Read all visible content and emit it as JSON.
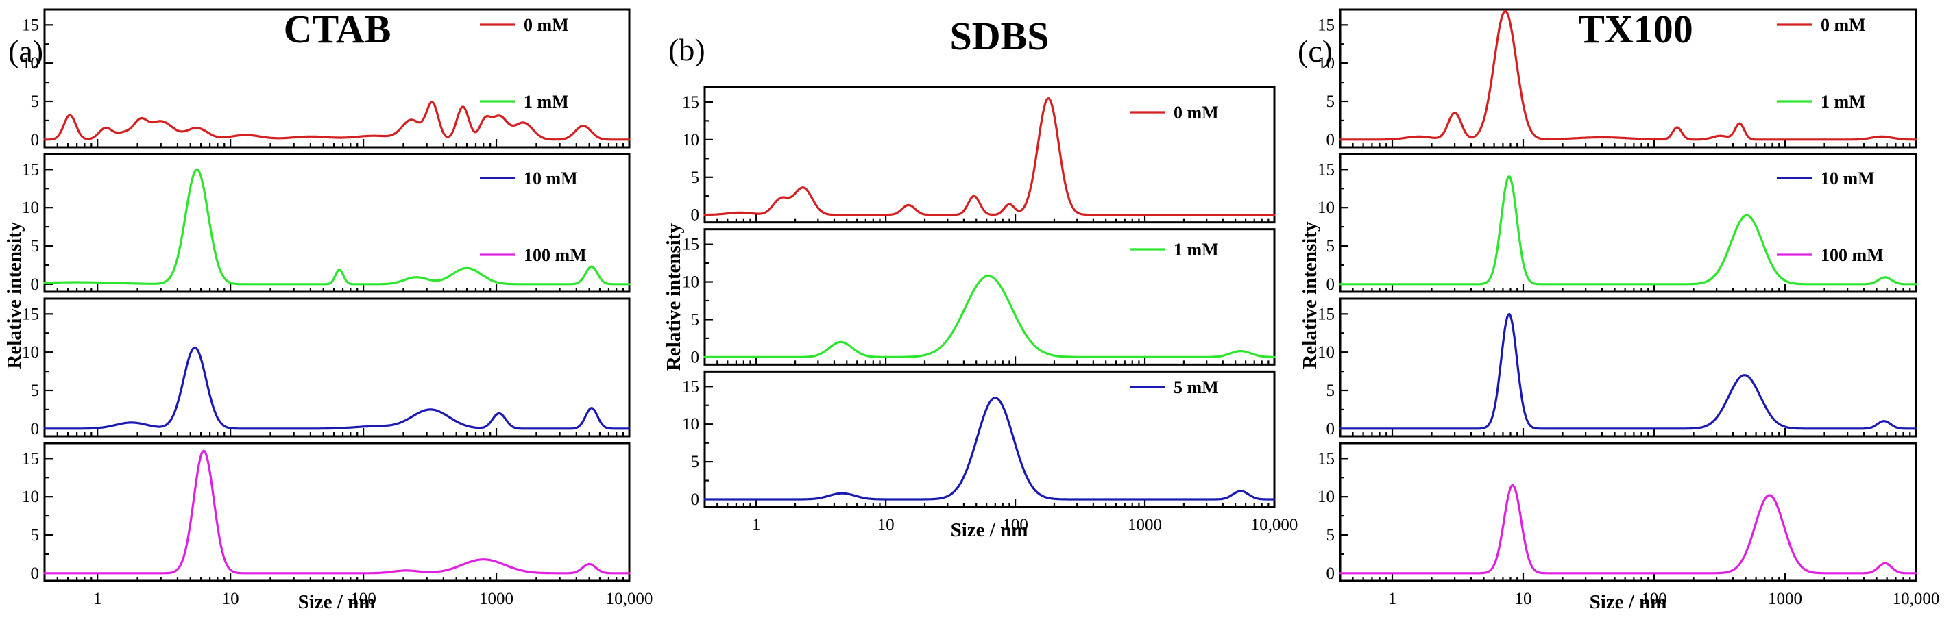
{
  "chart_data": [
    {
      "type": "line",
      "panel_label": "(a)",
      "title": "CTAB",
      "xlabel": "Size / nm",
      "ylabel": "Relative intensity",
      "x_scale": "log",
      "xlim": [
        0.4,
        10000
      ],
      "x_ticks": [
        {
          "value": 1,
          "label": "1"
        },
        {
          "value": 10,
          "label": "10"
        },
        {
          "value": 100,
          "label": "100"
        },
        {
          "value": 1000,
          "label": "1000"
        },
        {
          "value": 10000,
          "label": "10,000"
        }
      ],
      "ylim": [
        -1,
        17
      ],
      "y_ticks": [
        {
          "value": 0,
          "label": "0"
        },
        {
          "value": 5,
          "label": "5"
        },
        {
          "value": 10,
          "label": "10"
        },
        {
          "value": 15,
          "label": "15"
        }
      ],
      "series": [
        {
          "name": "0 mM",
          "color": "#d42020",
          "peaks": [
            [
              0.62,
              3.2,
              0.045
            ],
            [
              1.15,
              1.5,
              0.05
            ],
            [
              1.6,
              0.9,
              0.06
            ],
            [
              2.1,
              2.1,
              0.05
            ],
            [
              3.0,
              2.4,
              0.09
            ],
            [
              5.6,
              1.5,
              0.08
            ],
            [
              13,
              0.6,
              0.12
            ],
            [
              40,
              0.4,
              0.15
            ],
            [
              120,
              0.5,
              0.15
            ],
            [
              230,
              2.5,
              0.07
            ],
            [
              330,
              4.7,
              0.045
            ],
            [
              560,
              4.3,
              0.045
            ],
            [
              820,
              2.3,
              0.04
            ],
            [
              1050,
              3.0,
              0.06
            ],
            [
              1600,
              2.2,
              0.07
            ],
            [
              4500,
              1.8,
              0.06
            ]
          ]
        },
        {
          "name": "1 mM",
          "color": "#2ee52e",
          "peaks": [
            [
              0.7,
              0.25,
              0.3
            ],
            [
              5.6,
              15.0,
              0.085
            ],
            [
              66,
              1.9,
              0.03
            ],
            [
              250,
              0.9,
              0.09
            ],
            [
              600,
              2.1,
              0.11
            ],
            [
              5200,
              2.3,
              0.045
            ]
          ]
        },
        {
          "name": "10 mM",
          "color": "#1a1ab2",
          "peaks": [
            [
              1.8,
              0.8,
              0.12
            ],
            [
              5.4,
              10.6,
              0.085
            ],
            [
              120,
              0.3,
              0.15
            ],
            [
              320,
              2.5,
              0.14
            ],
            [
              1050,
              2.0,
              0.05
            ],
            [
              5200,
              2.7,
              0.045
            ]
          ]
        },
        {
          "name": "100 mM",
          "color": "#e020e0",
          "peaks": [
            [
              6.3,
              16.0,
              0.075
            ],
            [
              210,
              0.35,
              0.1
            ],
            [
              800,
              1.8,
              0.16
            ],
            [
              5000,
              1.2,
              0.05
            ]
          ]
        }
      ]
    },
    {
      "type": "line",
      "panel_label": "(b)",
      "title": "SDBS",
      "xlabel": "Size / nm",
      "ylabel": "Relative intensity",
      "x_scale": "log",
      "xlim": [
        0.4,
        10000
      ],
      "x_ticks": [
        {
          "value": 1,
          "label": "1"
        },
        {
          "value": 10,
          "label": "10"
        },
        {
          "value": 100,
          "label": "100"
        },
        {
          "value": 1000,
          "label": "1000"
        },
        {
          "value": 10000,
          "label": "10,000"
        }
      ],
      "ylim": [
        -1,
        17
      ],
      "y_ticks": [
        {
          "value": 0,
          "label": "0"
        },
        {
          "value": 5,
          "label": "5"
        },
        {
          "value": 10,
          "label": "10"
        },
        {
          "value": 15,
          "label": "15"
        }
      ],
      "series": [
        {
          "name": "0 mM",
          "color": "#d42020",
          "peaks": [
            [
              0.75,
              0.3,
              0.1
            ],
            [
              1.55,
              2.1,
              0.06
            ],
            [
              2.3,
              3.6,
              0.07
            ],
            [
              15,
              1.3,
              0.05
            ],
            [
              48,
              2.5,
              0.045
            ],
            [
              90,
              1.4,
              0.04
            ],
            [
              180,
              15.5,
              0.08
            ]
          ]
        },
        {
          "name": "1 mM",
          "color": "#2ee52e",
          "peaks": [
            [
              4.5,
              2.0,
              0.09
            ],
            [
              62,
              10.8,
              0.18
            ],
            [
              5500,
              0.8,
              0.08
            ]
          ]
        },
        {
          "name": "5 mM",
          "color": "#1a1ab2",
          "peaks": [
            [
              4.6,
              0.8,
              0.1
            ],
            [
              70,
              13.5,
              0.14
            ],
            [
              5500,
              1.1,
              0.06
            ]
          ]
        }
      ]
    },
    {
      "type": "line",
      "panel_label": "(c)",
      "title": "TX100",
      "xlabel": "Size / nm",
      "ylabel": "Relative intensity",
      "x_scale": "log",
      "xlim": [
        0.4,
        10000
      ],
      "x_ticks": [
        {
          "value": 1,
          "label": "1"
        },
        {
          "value": 10,
          "label": "10"
        },
        {
          "value": 100,
          "label": "100"
        },
        {
          "value": 1000,
          "label": "1000"
        },
        {
          "value": 10000,
          "label": "10,000"
        }
      ],
      "ylim": [
        -1,
        17
      ],
      "y_ticks": [
        {
          "value": 0,
          "label": "0"
        },
        {
          "value": 5,
          "label": "5"
        },
        {
          "value": 10,
          "label": "10"
        },
        {
          "value": 15,
          "label": "15"
        }
      ],
      "series": [
        {
          "name": "0 mM",
          "color": "#d42020",
          "peaks": [
            [
              1.6,
              0.4,
              0.1
            ],
            [
              3.0,
              3.5,
              0.05
            ],
            [
              7.3,
              16.8,
              0.085
            ],
            [
              40,
              0.3,
              0.2
            ],
            [
              150,
              1.6,
              0.035
            ],
            [
              320,
              0.5,
              0.06
            ],
            [
              450,
              2.1,
              0.035
            ],
            [
              5500,
              0.4,
              0.08
            ]
          ]
        },
        {
          "name": "1 mM",
          "color": "#2ee52e",
          "peaks": [
            [
              7.8,
              14.1,
              0.06
            ],
            [
              510,
              9.0,
              0.12
            ],
            [
              5800,
              0.9,
              0.05
            ]
          ]
        },
        {
          "name": "10 mM",
          "color": "#1a1ab2",
          "peaks": [
            [
              7.8,
              15.0,
              0.06
            ],
            [
              490,
              7.0,
              0.12
            ],
            [
              5700,
              1.0,
              0.05
            ]
          ]
        },
        {
          "name": "100 mM",
          "color": "#e020e0",
          "peaks": [
            [
              8.3,
              11.5,
              0.065
            ],
            [
              760,
              10.2,
              0.11
            ],
            [
              5800,
              1.3,
              0.05
            ]
          ]
        }
      ]
    }
  ]
}
